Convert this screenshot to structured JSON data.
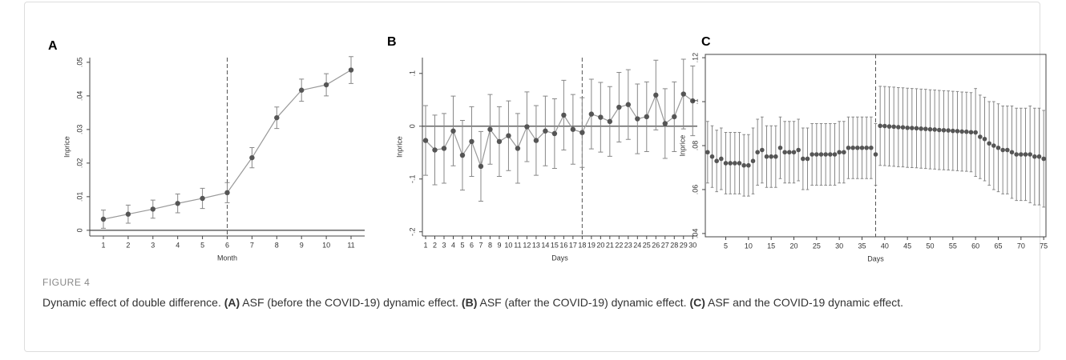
{
  "chart_data": [
    {
      "type": "line",
      "panel": "A",
      "xlabel": "Month",
      "ylabel": "lnprice",
      "connect": true,
      "hline": 0,
      "vline": 6,
      "x": [
        1,
        2,
        3,
        4,
        5,
        6,
        7,
        8,
        9,
        10,
        11
      ],
      "values": [
        0.0033,
        0.0048,
        0.0063,
        0.008,
        0.0095,
        0.0112,
        0.0216,
        0.0335,
        0.0417,
        0.0433,
        0.0477
      ],
      "errors": [
        0.0027,
        0.0027,
        0.0027,
        0.0028,
        0.003,
        0.003,
        0.003,
        0.0032,
        0.0033,
        0.0033,
        0.004
      ],
      "xlim": [
        0.45,
        11.55
      ],
      "xticks": [
        1,
        2,
        3,
        4,
        5,
        6,
        7,
        8,
        9,
        10,
        11
      ],
      "ylim": [
        -0.0017,
        0.0514
      ],
      "yticks": [
        0,
        {
          "value": 0.01,
          "label": ".01"
        },
        {
          "value": 0.02,
          "label": ".02"
        },
        {
          "value": 0.03,
          "label": ".03"
        },
        {
          "value": 0.04,
          "label": ".04"
        },
        {
          "value": 0.05,
          "label": ".05"
        }
      ]
    },
    {
      "type": "line",
      "panel": "B",
      "xlabel": "Days",
      "ylabel": "lnprice",
      "connect": true,
      "hline": 0,
      "vline": 18,
      "x": [
        1,
        2,
        3,
        4,
        5,
        6,
        7,
        8,
        9,
        10,
        11,
        12,
        13,
        14,
        15,
        16,
        17,
        18,
        19,
        20,
        21,
        22,
        23,
        24,
        25,
        26,
        27,
        28,
        29,
        30
      ],
      "values": [
        -0.027,
        -0.045,
        -0.042,
        -0.009,
        -0.055,
        -0.029,
        -0.076,
        -0.006,
        -0.029,
        -0.018,
        -0.042,
        -0.001,
        -0.027,
        -0.009,
        -0.014,
        0.021,
        -0.006,
        -0.012,
        0.023,
        0.017,
        0.009,
        0.036,
        0.041,
        0.014,
        0.018,
        0.059,
        0.005,
        0.018,
        0.061,
        0.048
      ],
      "errors": [
        0.066,
        0.066,
        0.066,
        0.066,
        0.066,
        0.066,
        0.066,
        0.066,
        0.066,
        0.066,
        0.066,
        0.066,
        0.066,
        0.066,
        0.066,
        0.066,
        0.066,
        0.066,
        0.066,
        0.066,
        0.066,
        0.066,
        0.066,
        0.066,
        0.066,
        0.066,
        0.066,
        0.066,
        0.066,
        0.066
      ],
      "xlim": [
        0.65,
        30.5
      ],
      "xticks": [
        1,
        2,
        3,
        4,
        5,
        6,
        7,
        8,
        9,
        10,
        11,
        12,
        13,
        14,
        15,
        16,
        17,
        18,
        19,
        20,
        21,
        22,
        23,
        24,
        25,
        26,
        27,
        28,
        29,
        30
      ],
      "ylim": [
        -0.208,
        0.13
      ],
      "yticks": [
        {
          "value": -0.2,
          "label": "-.2"
        },
        {
          "value": -0.1,
          "label": "-.1"
        },
        0,
        {
          "value": 0.1,
          "label": ".1"
        }
      ]
    },
    {
      "type": "line",
      "panel": "C",
      "xlabel": "Days",
      "ylabel": "lnprice",
      "connect": false,
      "vline": 38,
      "frame": true,
      "x": [
        1,
        2,
        3,
        4,
        5,
        6,
        7,
        8,
        9,
        10,
        11,
        12,
        13,
        14,
        15,
        16,
        17,
        18,
        19,
        20,
        21,
        22,
        23,
        24,
        25,
        26,
        27,
        28,
        29,
        30,
        31,
        32,
        33,
        34,
        35,
        36,
        37,
        38,
        39,
        40,
        41,
        42,
        43,
        44,
        45,
        46,
        47,
        48,
        49,
        50,
        51,
        52,
        53,
        54,
        55,
        56,
        57,
        58,
        59,
        60,
        61,
        62,
        63,
        64,
        65,
        66,
        67,
        68,
        69,
        70,
        71,
        72,
        73,
        74,
        75
      ],
      "values": [
        0.077,
        0.075,
        0.073,
        0.074,
        0.072,
        0.072,
        0.072,
        0.072,
        0.071,
        0.071,
        0.073,
        0.077,
        0.078,
        0.075,
        0.075,
        0.075,
        0.079,
        0.077,
        0.077,
        0.077,
        0.078,
        0.074,
        0.074,
        0.076,
        0.076,
        0.076,
        0.076,
        0.076,
        0.076,
        0.077,
        0.077,
        0.079,
        0.079,
        0.079,
        0.079,
        0.079,
        0.079,
        0.076,
        0.089,
        0.0889,
        0.0887,
        0.0886,
        0.0884,
        0.0883,
        0.0881,
        0.088,
        0.0879,
        0.0877,
        0.0876,
        0.0874,
        0.0873,
        0.0871,
        0.087,
        0.0869,
        0.0867,
        0.0866,
        0.0864,
        0.0863,
        0.0861,
        0.086,
        0.084,
        0.083,
        0.081,
        0.08,
        0.079,
        0.078,
        0.078,
        0.077,
        0.076,
        0.076,
        0.076,
        0.076,
        0.075,
        0.075,
        0.074
      ],
      "errors": [
        0.014,
        0.014,
        0.014,
        0.014,
        0.014,
        0.014,
        0.014,
        0.014,
        0.014,
        0.014,
        0.015,
        0.015,
        0.015,
        0.014,
        0.014,
        0.014,
        0.014,
        0.014,
        0.014,
        0.014,
        0.014,
        0.014,
        0.014,
        0.014,
        0.014,
        0.014,
        0.014,
        0.014,
        0.014,
        0.014,
        0.014,
        0.014,
        0.014,
        0.014,
        0.014,
        0.014,
        0.014,
        0.014,
        0.018,
        0.018,
        0.018,
        0.018,
        0.018,
        0.018,
        0.018,
        0.018,
        0.018,
        0.018,
        0.018,
        0.018,
        0.018,
        0.018,
        0.018,
        0.018,
        0.018,
        0.018,
        0.018,
        0.018,
        0.018,
        0.02,
        0.019,
        0.019,
        0.019,
        0.02,
        0.02,
        0.02,
        0.02,
        0.021,
        0.021,
        0.021,
        0.021,
        0.022,
        0.022,
        0.022,
        0.022
      ],
      "xlim": [
        0.5,
        75.5
      ],
      "xticks": [
        5,
        10,
        15,
        20,
        25,
        30,
        35,
        40,
        45,
        50,
        55,
        60,
        65,
        70,
        75
      ],
      "ylim": [
        0.0385,
        0.1215
      ],
      "yticks": [
        {
          "value": 0.04,
          "label": ".04"
        },
        {
          "value": 0.06,
          "label": ".06"
        },
        {
          "value": 0.08,
          "label": ".08"
        },
        {
          "value": 0.1,
          "label": ".1"
        },
        {
          "value": 0.12,
          "label": ".12"
        }
      ]
    }
  ],
  "figure": {
    "label": "FIGURE 4",
    "caption": [
      {
        "text": "Dynamic effect of double difference. ",
        "bold": false
      },
      {
        "text": "(A)",
        "bold": true
      },
      {
        "text": " ASF (before the COVID-19) dynamic effect. ",
        "bold": false
      },
      {
        "text": "(B)",
        "bold": true
      },
      {
        "text": " ASF (after the COVID-19) dynamic effect. ",
        "bold": false
      },
      {
        "text": "(C)",
        "bold": true
      },
      {
        "text": " ASF and the COVID-19 dynamic effect.",
        "bold": false
      }
    ]
  }
}
